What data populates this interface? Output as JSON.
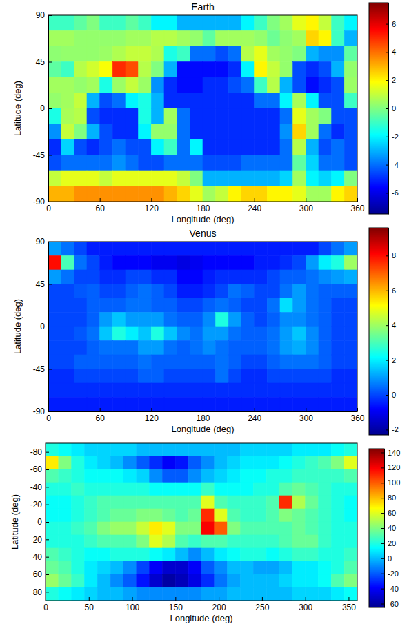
{
  "chart_data": [
    {
      "type": "heatmap",
      "title": "Earth",
      "xlabel": "Longitude (deg)",
      "ylabel": "Latitude (deg)",
      "xlim": [
        0,
        360
      ],
      "ylim": [
        -90,
        90
      ],
      "xticks": [
        0,
        60,
        120,
        180,
        240,
        300,
        360
      ],
      "yticks": [
        -90,
        -45,
        0,
        45,
        90
      ],
      "x": [
        7.5,
        22.5,
        37.5,
        52.5,
        67.5,
        82.5,
        97.5,
        112.5,
        127.5,
        142.5,
        157.5,
        172.5,
        187.5,
        202.5,
        217.5,
        232.5,
        247.5,
        262.5,
        277.5,
        292.5,
        307.5,
        322.5,
        337.5,
        352.5
      ],
      "y": [
        82.5,
        67.5,
        52.5,
        37.5,
        22.5,
        7.5,
        -7.5,
        -22.5,
        -37.5,
        -52.5,
        -67.5,
        -82.5
      ],
      "values": [
        [
          -1,
          -1,
          -0.5,
          0,
          -1,
          -1,
          -0.5,
          -1,
          -2,
          -2,
          -3,
          -3,
          -3,
          -3,
          -3,
          -2,
          -1,
          0,
          0.5,
          1.5,
          2,
          1,
          -1,
          -2
        ],
        [
          0.5,
          0.5,
          0.3,
          0.3,
          0.3,
          0.3,
          0.5,
          0.5,
          0.8,
          0.8,
          0.5,
          0.3,
          -0.5,
          0.5,
          0.5,
          0.5,
          0.3,
          -0.3,
          0.2,
          0.5,
          2.5,
          2,
          -1,
          -3
        ],
        [
          0.2,
          0.3,
          0.3,
          0.3,
          0.4,
          0.7,
          1,
          1,
          0.7,
          -1.5,
          -1,
          -4,
          -4,
          -4.5,
          -4,
          0.8,
          1.5,
          0.5,
          0.3,
          0,
          -3,
          -3.5,
          -3.5,
          -0.5
        ],
        [
          -0.5,
          -1,
          0.8,
          1.2,
          1.8,
          5,
          4.5,
          0.8,
          0,
          -3,
          -5.5,
          -5.5,
          -5.5,
          -5.5,
          -5,
          -2,
          2,
          1,
          0.3,
          -4.5,
          -5,
          -4.5,
          -3,
          0.3
        ],
        [
          0.5,
          0.5,
          0.3,
          0.5,
          -1.5,
          0.4,
          1,
          0.4,
          -3.5,
          -5,
          -5.5,
          -5.5,
          -5,
          -5,
          -4.5,
          -4,
          -1,
          0.8,
          -3,
          -4.5,
          -5.5,
          -5,
          -4.5,
          0.4
        ],
        [
          0.3,
          0.5,
          1,
          -3,
          -4.5,
          -4,
          -2,
          -1.5,
          -3,
          -5,
          -5,
          -5,
          -5,
          -5,
          -5,
          -5,
          -4,
          -4,
          -2,
          0.6,
          -2,
          -4.5,
          -4.5,
          -1
        ],
        [
          -1.5,
          0.6,
          0.8,
          -4.5,
          -5,
          -5,
          -5,
          -1.5,
          -3,
          0.5,
          -4,
          -5,
          -5,
          -5,
          -5,
          -5,
          -5,
          -5,
          -4,
          1.5,
          0.5,
          0,
          -4.5,
          -4.5
        ],
        [
          -3.5,
          1,
          0,
          -3,
          -4.5,
          -5,
          -5,
          -2,
          0.3,
          0.3,
          -4,
          -5,
          -5,
          -5,
          -5,
          -5,
          -5,
          -5,
          -3.5,
          2.5,
          0.5,
          -4,
          -5,
          -4.5
        ],
        [
          -5,
          -2.5,
          -4.5,
          -5,
          -4.5,
          -4,
          -4.5,
          -4.5,
          -2,
          -1,
          -4,
          -2,
          -5,
          -5,
          -5,
          -5,
          -5,
          -5,
          -4,
          0.8,
          -3,
          -4.5,
          -4,
          -4.5
        ],
        [
          -4.5,
          -4,
          -4,
          -4,
          -4,
          -3.5,
          -4,
          -4.5,
          -4.5,
          -4,
          -4,
          -4,
          -4.5,
          -4.5,
          -4.5,
          -4,
          -4,
          -4,
          -4,
          -0.5,
          -2.5,
          -4,
          -4,
          -4.5
        ],
        [
          1,
          1.5,
          1.5,
          1.5,
          1,
          1.5,
          1.5,
          1.5,
          1.5,
          1.5,
          1,
          0,
          -3,
          -3,
          -3,
          -3,
          -3,
          -3,
          -2.5,
          0.5,
          -2,
          -2.5,
          -2,
          0
        ],
        [
          3,
          3,
          3.5,
          3.5,
          3.5,
          3.5,
          3.5,
          3.5,
          3.5,
          3,
          2.5,
          1.5,
          0.5,
          1,
          2,
          2.5,
          2.5,
          2,
          2,
          1.5,
          0.5,
          0.5,
          2,
          2.5
        ]
      ],
      "colorbar": {
        "range": [
          -7.5,
          7.5
        ],
        "ticks": [
          -6,
          -4,
          -2,
          0,
          2,
          4,
          6
        ]
      }
    },
    {
      "type": "heatmap",
      "title": "Venus",
      "xlabel": "Longitude (deg)",
      "ylabel": "Latitude (deg)",
      "xlim": [
        0,
        360
      ],
      "ylim": [
        -90,
        90
      ],
      "xticks": [
        0,
        60,
        120,
        180,
        240,
        300,
        360
      ],
      "yticks": [
        -90,
        -45,
        0,
        45,
        90
      ],
      "x": [
        7.5,
        22.5,
        37.5,
        52.5,
        67.5,
        82.5,
        97.5,
        112.5,
        127.5,
        142.5,
        157.5,
        172.5,
        187.5,
        202.5,
        217.5,
        232.5,
        247.5,
        262.5,
        277.5,
        292.5,
        307.5,
        322.5,
        337.5,
        352.5
      ],
      "y": [
        82.5,
        67.5,
        52.5,
        37.5,
        22.5,
        7.5,
        -7.5,
        -22.5,
        -37.5,
        -52.5,
        -67.5,
        -82.5
      ],
      "values": [
        [
          1,
          0.5,
          0,
          -0.5,
          -0.5,
          -0.5,
          -0.5,
          -0.5,
          -0.5,
          -0.5,
          -0.5,
          -0.5,
          -0.5,
          -0.5,
          -0.5,
          -0.5,
          -0.5,
          -0.5,
          -0.5,
          -0.5,
          -0.5,
          0,
          0.5,
          1
        ],
        [
          8,
          3,
          0.5,
          0,
          -0.5,
          -0.8,
          -0.8,
          -0.8,
          -1,
          -1,
          -1.2,
          -1,
          -0.8,
          -0.8,
          -0.8,
          -0.8,
          -0.5,
          -0.5,
          -0.3,
          0,
          1,
          2,
          2.5,
          4
        ],
        [
          1,
          0.5,
          0,
          0,
          -0.3,
          -0.3,
          0,
          0,
          -0.3,
          -0.3,
          -0.8,
          -0.8,
          -0.5,
          -0.3,
          -0.3,
          -0.3,
          -0.3,
          0,
          0.3,
          0.3,
          0.5,
          0.8,
          1,
          1.2
        ],
        [
          0,
          0,
          0.2,
          0.3,
          0,
          0,
          0.3,
          0.5,
          0.3,
          0,
          -0.5,
          -0.5,
          -0.3,
          0,
          0.5,
          0.3,
          0,
          0,
          0.5,
          1,
          0.5,
          0.3,
          0.3,
          0.3
        ],
        [
          0,
          0,
          0,
          0.3,
          0.3,
          0.3,
          0.5,
          0.5,
          0.3,
          0.3,
          0,
          0,
          0.3,
          0.5,
          0.3,
          0,
          0,
          0.5,
          1.8,
          1,
          0.5,
          0.3,
          0,
          0
        ],
        [
          0,
          0,
          0,
          0.3,
          1,
          1.5,
          1,
          1,
          1,
          0.5,
          0.3,
          0.3,
          0.8,
          2.5,
          1,
          0.3,
          0,
          0.3,
          0.8,
          0.8,
          0.5,
          0.3,
          0,
          0
        ],
        [
          0,
          0,
          0.2,
          0.5,
          1.5,
          2.5,
          2,
          1.5,
          2.5,
          1.5,
          0.8,
          0.5,
          1,
          1,
          0.5,
          0.3,
          0.3,
          0.5,
          1,
          1.5,
          0.8,
          0.3,
          0,
          0
        ],
        [
          0,
          0,
          0,
          0.3,
          0.5,
          0.5,
          0.5,
          1,
          1,
          0.5,
          0.3,
          0.5,
          0.8,
          0.5,
          0.3,
          0.3,
          0.3,
          0.5,
          1,
          1.2,
          0.8,
          0.3,
          0,
          0
        ],
        [
          0,
          0,
          0.3,
          0.3,
          0.3,
          0.3,
          0.3,
          0.5,
          0.3,
          0.3,
          0.3,
          0.3,
          0.3,
          0.5,
          0.3,
          0,
          0,
          0.3,
          0.5,
          0.5,
          0.5,
          0.3,
          0,
          0
        ],
        [
          -0.3,
          -0.3,
          0,
          0,
          0,
          0,
          0,
          0.3,
          0.3,
          0,
          0,
          0,
          0,
          0.5,
          0,
          -0.3,
          -0.3,
          0,
          0,
          0,
          0,
          0,
          -0.3,
          -0.3
        ],
        [
          -0.3,
          -0.3,
          -0.3,
          -0.3,
          -0.3,
          -0.3,
          -0.3,
          -0.3,
          -0.3,
          -0.3,
          -0.3,
          -0.3,
          -0.3,
          -0.3,
          -0.3,
          -0.3,
          -0.3,
          -0.3,
          -0.3,
          -0.3,
          -0.3,
          -0.3,
          -0.3,
          -0.3
        ],
        [
          -0.5,
          -0.5,
          -0.5,
          -0.5,
          -0.5,
          -0.5,
          -0.5,
          -0.5,
          -0.5,
          -0.5,
          -0.5,
          -0.5,
          -0.5,
          -0.5,
          -0.5,
          -0.5,
          -0.5,
          -0.5,
          -0.5,
          -0.5,
          -0.5,
          -0.5,
          -0.5,
          -0.5
        ]
      ],
      "colorbar": {
        "range": [
          -2.3,
          9.6
        ],
        "ticks": [
          -2,
          0,
          2,
          4,
          6,
          8
        ]
      }
    },
    {
      "type": "heatmap",
      "xlabel": "Longitude (deg)",
      "ylabel": "Latitude (deg)",
      "xlim": [
        0,
        360
      ],
      "ylim": [
        90,
        -90
      ],
      "xticks": [
        0,
        50,
        100,
        150,
        200,
        250,
        300,
        350
      ],
      "yticks": [
        -80,
        -60,
        -40,
        -20,
        0,
        20,
        40,
        60,
        80
      ],
      "x": [
        7.5,
        22.5,
        37.5,
        52.5,
        67.5,
        82.5,
        97.5,
        112.5,
        127.5,
        142.5,
        157.5,
        172.5,
        187.5,
        202.5,
        217.5,
        232.5,
        247.5,
        262.5,
        277.5,
        292.5,
        307.5,
        322.5,
        337.5,
        352.5
      ],
      "y": [
        -82.5,
        -67.5,
        -52.5,
        -37.5,
        -22.5,
        -7.5,
        7.5,
        22.5,
        37.5,
        52.5,
        67.5,
        82.5
      ],
      "values": [
        [
          20,
          15,
          10,
          5,
          5,
          5,
          5,
          0,
          0,
          0,
          0,
          0,
          0,
          0,
          0,
          5,
          5,
          5,
          5,
          10,
          10,
          10,
          15,
          20
        ],
        [
          70,
          40,
          20,
          10,
          5,
          0,
          -10,
          -20,
          -30,
          -40,
          -35,
          -20,
          -10,
          0,
          5,
          10,
          10,
          10,
          15,
          20,
          25,
          30,
          40,
          60
        ],
        [
          30,
          25,
          20,
          15,
          15,
          15,
          10,
          5,
          -10,
          -20,
          -20,
          -10,
          0,
          5,
          10,
          15,
          15,
          20,
          20,
          25,
          25,
          25,
          25,
          30
        ],
        [
          20,
          20,
          25,
          20,
          20,
          20,
          20,
          20,
          15,
          15,
          15,
          15,
          25,
          15,
          15,
          15,
          20,
          20,
          30,
          35,
          30,
          25,
          20,
          20
        ],
        [
          15,
          15,
          20,
          25,
          30,
          30,
          30,
          30,
          30,
          30,
          30,
          30,
          60,
          30,
          25,
          25,
          25,
          30,
          110,
          50,
          35,
          25,
          20,
          15
        ],
        [
          15,
          15,
          20,
          25,
          30,
          35,
          35,
          40,
          40,
          35,
          30,
          35,
          110,
          60,
          30,
          25,
          25,
          30,
          40,
          35,
          30,
          25,
          20,
          15
        ],
        [
          20,
          20,
          25,
          30,
          40,
          45,
          45,
          55,
          70,
          60,
          40,
          40,
          120,
          100,
          40,
          30,
          30,
          30,
          30,
          35,
          30,
          25,
          20,
          20
        ],
        [
          20,
          20,
          20,
          25,
          30,
          30,
          30,
          40,
          60,
          50,
          30,
          25,
          30,
          30,
          25,
          25,
          25,
          25,
          30,
          35,
          35,
          25,
          20,
          20
        ],
        [
          30,
          25,
          20,
          15,
          15,
          20,
          20,
          20,
          15,
          10,
          0,
          -10,
          0,
          10,
          15,
          20,
          20,
          15,
          20,
          25,
          25,
          20,
          20,
          25
        ],
        [
          35,
          30,
          20,
          10,
          5,
          0,
          -10,
          -25,
          -40,
          -50,
          -50,
          -40,
          -20,
          -10,
          0,
          0,
          -5,
          -5,
          0,
          10,
          10,
          15,
          20,
          30
        ],
        [
          45,
          35,
          25,
          10,
          0,
          -10,
          -20,
          -35,
          -50,
          -60,
          -55,
          -45,
          -30,
          -15,
          -5,
          0,
          0,
          0,
          5,
          10,
          10,
          15,
          30,
          40
        ],
        [
          20,
          15,
          10,
          5,
          0,
          0,
          -5,
          -10,
          -10,
          -10,
          -10,
          -10,
          -5,
          -5,
          0,
          0,
          0,
          0,
          0,
          5,
          5,
          5,
          10,
          15
        ]
      ],
      "colorbar": {
        "range": [
          -65,
          145
        ],
        "ticks": [
          -60,
          -40,
          -20,
          0,
          20,
          40,
          60,
          80,
          100,
          120,
          140
        ]
      }
    }
  ]
}
